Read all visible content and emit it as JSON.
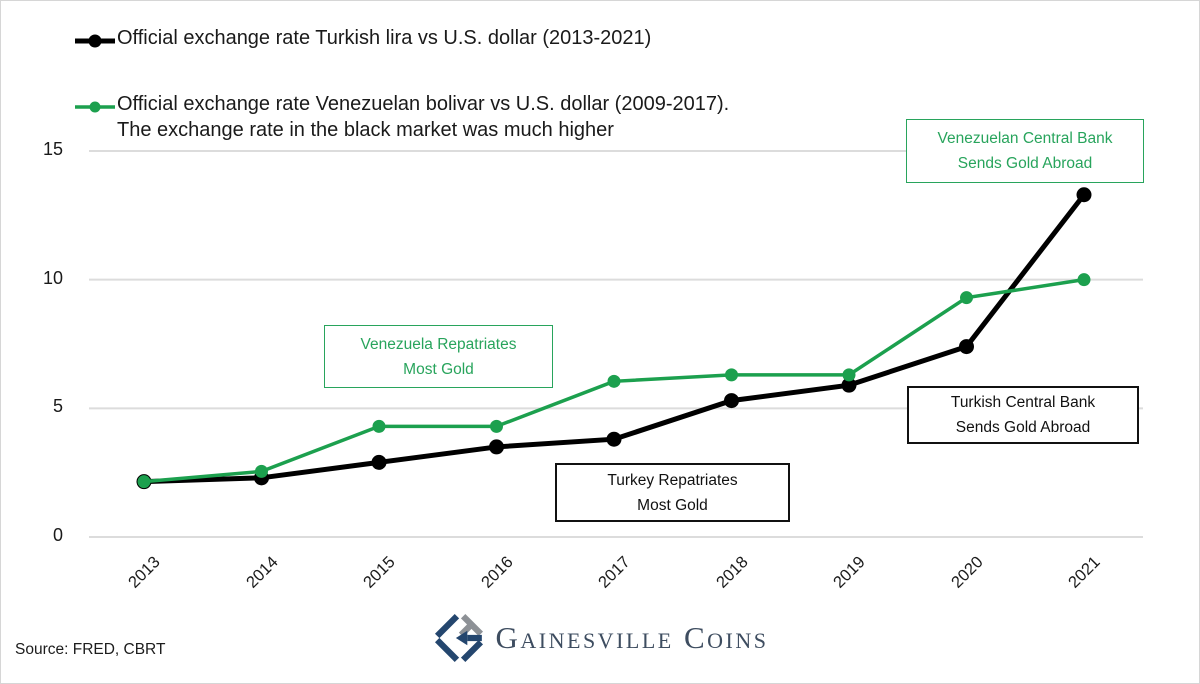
{
  "legend": [
    {
      "label": "Official exchange rate Turkish lira vs U.S. dollar (2013-2021)",
      "color": "#000000"
    },
    {
      "label": "Official exchange rate Venezuelan bolivar vs U.S. dollar (2009-2017).",
      "sublabel": "The exchange rate in the black market was much higher",
      "color": "#1ca04e"
    }
  ],
  "chart_data": {
    "type": "line",
    "categories": [
      "2013",
      "2014",
      "2015",
      "2016",
      "2017",
      "2018",
      "2019",
      "2020",
      "2021"
    ],
    "series": [
      {
        "name": "Official exchange rate Turkish lira vs U.S. dollar (2013-2021)",
        "color": "#000000",
        "values": [
          2.15,
          2.3,
          2.9,
          3.5,
          3.8,
          5.3,
          5.9,
          7.4,
          13.3
        ]
      },
      {
        "name": "Official exchange rate Venezuelan bolivar vs U.S. dollar (2009-2017)",
        "color": "#1ca04e",
        "values": [
          2.15,
          2.55,
          4.3,
          4.3,
          6.05,
          6.3,
          6.3,
          9.3,
          10.0
        ]
      }
    ],
    "xlabel": "",
    "ylabel": "",
    "ylim": [
      0,
      15
    ],
    "yticks": [
      0,
      5,
      10,
      15
    ],
    "grid": "horizontal",
    "legend_position": "top-left"
  },
  "annotations": [
    {
      "line1": "Venezuelan Central Bank",
      "line2": "Sends Gold Abroad",
      "accent": "green"
    },
    {
      "line1": "Venezuela Repatriates",
      "line2": "Most Gold",
      "accent": "green"
    },
    {
      "line1": "Turkey Repatriates",
      "line2": "Most Gold",
      "accent": "black"
    },
    {
      "line1": "Turkish Central Bank",
      "line2": "Sends Gold Abroad",
      "accent": "black"
    }
  ],
  "colors": {
    "green": "#28a45c",
    "black": "#111111",
    "gridline": "#dcdcdc",
    "logo_navy": "#24466e",
    "logo_gray": "#8d9196",
    "brand_text": "#3e4d60"
  },
  "footer": {
    "source": "Source: FRED, CBRT",
    "brand": "Gainesville Coins"
  }
}
